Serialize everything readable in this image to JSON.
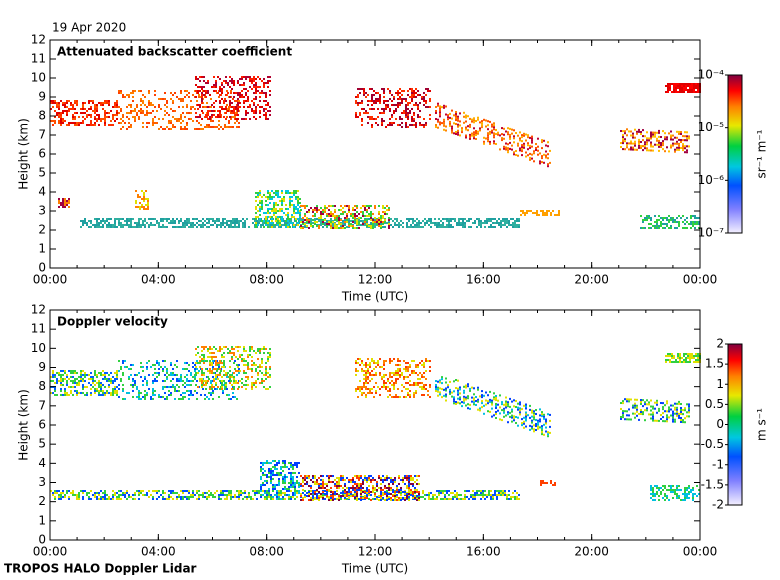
{
  "chart_data": [
    {
      "type": "heatmap",
      "date": "19 Apr 2020",
      "title": "Attenuated backscatter coefficient",
      "xlabel": "Time (UTC)",
      "ylabel": "Height (km)",
      "xlim": [
        0,
        24
      ],
      "xticks": [
        {
          "value": 0,
          "label": "00:00"
        },
        {
          "value": 4,
          "label": "04:00"
        },
        {
          "value": 8,
          "label": "08:00"
        },
        {
          "value": 12,
          "label": "12:00"
        },
        {
          "value": 16,
          "label": "16:00"
        },
        {
          "value": 20,
          "label": "20:00"
        },
        {
          "value": 24,
          "label": "00:00"
        }
      ],
      "ylim": [
        0,
        12
      ],
      "yticks": [
        0,
        1,
        2,
        3,
        4,
        5,
        6,
        7,
        8,
        9,
        10,
        11,
        12
      ],
      "colorbar": {
        "label": "sr⁻¹ m⁻¹",
        "log": true,
        "lim": [
          1e-07,
          0.0001
        ],
        "ticks": [
          {
            "value": 1e-07,
            "label": "10⁻⁷"
          },
          {
            "value": 1e-06,
            "label": "10⁻⁶"
          },
          {
            "value": 1e-05,
            "label": "10⁻⁵"
          },
          {
            "value": 0.0001,
            "label": "10⁻⁴"
          }
        ]
      }
    },
    {
      "type": "heatmap",
      "title": "Doppler velocity",
      "xlabel": "Time (UTC)",
      "ylabel": "Height (km)",
      "xlim": [
        0,
        24
      ],
      "xticks": [
        {
          "value": 0,
          "label": "00:00"
        },
        {
          "value": 4,
          "label": "04:00"
        },
        {
          "value": 8,
          "label": "08:00"
        },
        {
          "value": 12,
          "label": "12:00"
        },
        {
          "value": 16,
          "label": "16:00"
        },
        {
          "value": 20,
          "label": "20:00"
        },
        {
          "value": 24,
          "label": "00:00"
        }
      ],
      "ylim": [
        0,
        12
      ],
      "yticks": [
        0,
        1,
        2,
        3,
        4,
        5,
        6,
        7,
        8,
        9,
        10,
        11,
        12
      ],
      "colorbar": {
        "label": "m s⁻¹",
        "log": false,
        "lim": [
          -2,
          2
        ],
        "ticks": [
          -2,
          -1.5,
          -1,
          -0.5,
          0,
          0.5,
          1,
          1.5,
          2
        ]
      }
    }
  ],
  "footer": "TROPOS HALO Doppler Lidar"
}
